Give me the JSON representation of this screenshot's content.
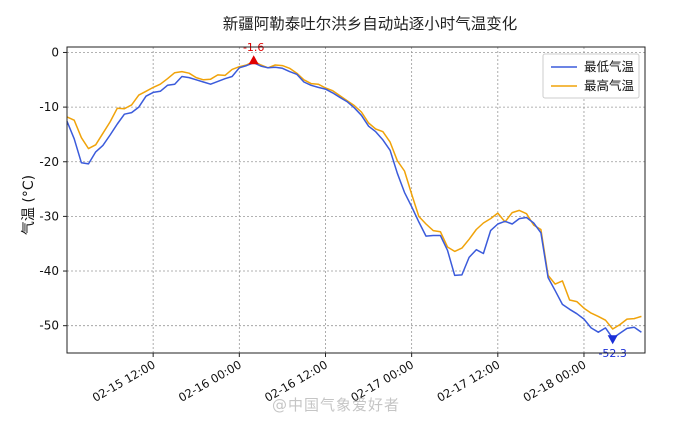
{
  "chart_data": {
    "type": "line",
    "title": "新疆阿勒泰吐尔洪乡自动站逐小时气温变化",
    "ylabel": "气温 (°C)",
    "xlabel": "",
    "ylim": [
      -55,
      1
    ],
    "yticks": [
      0,
      -10,
      -20,
      -30,
      -40,
      -50
    ],
    "x_ticks": [
      {
        "label": "02-15 12:00",
        "pos": 12
      },
      {
        "label": "02-16 00:00",
        "pos": 24
      },
      {
        "label": "02-16 12:00",
        "pos": 36
      },
      {
        "label": "02-17 00:00",
        "pos": 48
      },
      {
        "label": "02-17 12:00",
        "pos": 60
      },
      {
        "label": "02-18 00:00",
        "pos": 72
      }
    ],
    "xlim": [
      0,
      80.5
    ],
    "grid": true,
    "legend_position": "top-right",
    "series": [
      {
        "name": "最低气温",
        "color": "#3b5bdb",
        "values": [
          -12.6,
          -15.8,
          -20.2,
          -20.4,
          -18.2,
          -17.0,
          -15.1,
          -13.1,
          -11.3,
          -11.0,
          -10.0,
          -8.0,
          -7.3,
          -7.1,
          -6.0,
          -5.8,
          -4.4,
          -4.6,
          -5.0,
          -5.4,
          -5.8,
          -5.3,
          -4.8,
          -4.4,
          -2.8,
          -2.4,
          -1.9,
          -2.5,
          -2.8,
          -2.7,
          -2.9,
          -3.5,
          -4.0,
          -5.4,
          -6.0,
          -6.4,
          -6.7,
          -7.4,
          -8.2,
          -9.0,
          -10.1,
          -11.5,
          -13.5,
          -14.5,
          -16.0,
          -17.9,
          -22.1,
          -25.6,
          -28.2,
          -31.0,
          -33.6,
          -33.5,
          -33.5,
          -36.2,
          -40.8,
          -40.7,
          -37.5,
          -36.1,
          -36.8,
          -32.6,
          -31.4,
          -30.9,
          -31.4,
          -30.4,
          -30.2,
          -31.2,
          -33.0,
          -41.2,
          -43.6,
          -46.1,
          -47.0,
          -47.8,
          -48.8,
          -50.4,
          -51.2,
          -50.4,
          -52.3,
          -51.4,
          -50.5,
          -50.3,
          -51.2
        ]
      },
      {
        "name": "最高气温",
        "color": "#f0a30a",
        "values": [
          -11.8,
          -12.4,
          -15.6,
          -17.6,
          -16.9,
          -14.8,
          -12.7,
          -10.2,
          -10.3,
          -9.6,
          -7.8,
          -7.1,
          -6.4,
          -5.8,
          -4.8,
          -3.7,
          -3.5,
          -3.8,
          -4.6,
          -5.0,
          -4.9,
          -4.1,
          -4.2,
          -3.1,
          -2.6,
          -2.3,
          -1.6,
          -2.3,
          -2.8,
          -2.3,
          -2.4,
          -2.9,
          -3.8,
          -5.0,
          -5.7,
          -5.8,
          -6.5,
          -7.0,
          -7.9,
          -8.8,
          -9.7,
          -10.9,
          -12.9,
          -14.0,
          -14.5,
          -16.4,
          -19.8,
          -21.7,
          -25.9,
          -30.0,
          -31.4,
          -32.6,
          -32.8,
          -35.6,
          -36.4,
          -35.8,
          -34.2,
          -32.4,
          -31.2,
          -30.4,
          -29.4,
          -31.0,
          -29.3,
          -28.9,
          -29.5,
          -31.6,
          -32.4,
          -40.8,
          -42.4,
          -41.8,
          -45.3,
          -45.6,
          -46.8,
          -47.7,
          -48.3,
          -49.0,
          -50.6,
          -49.8,
          -48.8,
          -48.7,
          -48.3
        ]
      }
    ],
    "annotations": [
      {
        "text": "-1.6",
        "series": 1,
        "index": 26,
        "marker": "up",
        "color": "#e00000"
      },
      {
        "text": "-52.3",
        "series": 0,
        "index": 76,
        "marker": "down",
        "color": "#1a2ed8"
      }
    ]
  },
  "watermark": "@中国气象爱好者"
}
